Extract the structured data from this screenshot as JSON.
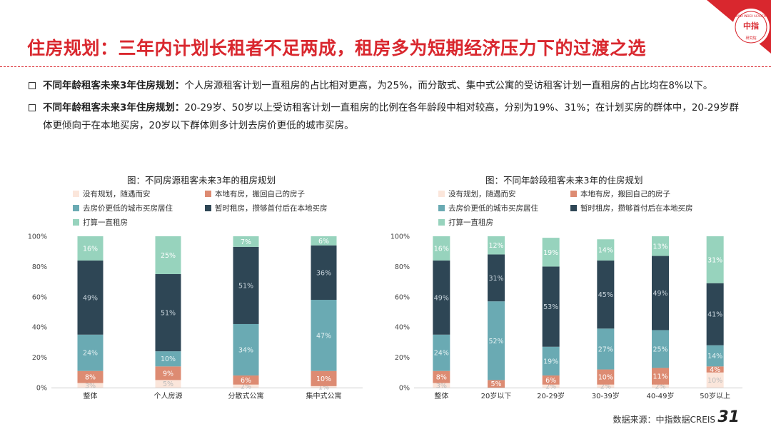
{
  "page": {
    "title": "住房规划：三年内计划长租者不足两成，租房多为短期经济压力下的过渡之选",
    "logo_text": "中指",
    "logo_ring_text": "CHINA INDEX ACADEMY",
    "logo_sub": "研究院",
    "source": "数据来源：中指数据CREIS",
    "page_number": "31"
  },
  "bullets": [
    {
      "lead": "不同年龄租客未来3年住房规划：",
      "text": "个人房源租客计划一直租房的占比相对更高，为25%，而分散式、集中式公寓的受访租客计划一直租房的占比均在8%以下。"
    },
    {
      "lead": "不同年龄租客未来3年住房规划：",
      "text": "20-29岁、50岁以上受访租客计划一直租房的比例在各年龄段中相对较高，分别为19%、31%；在计划买房的群体中，20-29岁群体更倾向于在本地买房，20岁以下群体则多计划去房价更低的城市买房。"
    }
  ],
  "colors": {
    "accent": "#d9272e",
    "s0": "#fbe6db",
    "s1": "#dd8b72",
    "s2": "#6aaab3",
    "s3": "#2e4655",
    "s4": "#97d3bd"
  },
  "chart_data": [
    {
      "type": "bar",
      "stacked": true,
      "title": "图：不同房源租客未来3年的租房规划",
      "categories": [
        "整体",
        "个人房源",
        "分散式公寓",
        "集中式公寓"
      ],
      "yticks": [
        "0%",
        "20%",
        "40%",
        "60%",
        "80%",
        "100%"
      ],
      "ylim": [
        0,
        100
      ],
      "series": [
        {
          "name": "没有规划，随遇而安",
          "values": [
            3,
            5,
            2,
            1
          ]
        },
        {
          "name": "本地有房，搬回自己的房子",
          "values": [
            8,
            9,
            6,
            10
          ]
        },
        {
          "name": "去房价更低的城市买房居住",
          "values": [
            24,
            10,
            34,
            47
          ]
        },
        {
          "name": "暂时租房，攒够首付后在本地买房",
          "values": [
            49,
            51,
            51,
            36
          ]
        },
        {
          "name": "打算一直租房",
          "values": [
            16,
            25,
            7,
            6
          ]
        }
      ],
      "labels": [
        [
          "3%",
          "5%",
          "2%",
          "1%"
        ],
        [
          "8%",
          "9%",
          "6%",
          "10%"
        ],
        [
          "24%",
          "10%",
          "34%",
          "47%"
        ],
        [
          "49%",
          "51%",
          "51%",
          "36%"
        ],
        [
          "16%",
          "25%",
          "7%",
          "6%"
        ]
      ]
    },
    {
      "type": "bar",
      "stacked": true,
      "title": "图：不同年龄段租客未来3年的住房规划",
      "categories": [
        "整体",
        "20岁以下",
        "20-29岁",
        "30-39岁",
        "40-49岁",
        "50岁以上"
      ],
      "yticks": [
        "0%",
        "20%",
        "40%",
        "60%",
        "80%",
        "100%"
      ],
      "ylim": [
        0,
        100
      ],
      "series": [
        {
          "name": "没有规划，随遇而安",
          "values": [
            3,
            0,
            2,
            2,
            2,
            10
          ]
        },
        {
          "name": "本地有房，搬回自己的房子",
          "values": [
            8,
            5,
            6,
            10,
            11,
            4
          ]
        },
        {
          "name": "去房价更低的城市买房居住",
          "values": [
            24,
            52,
            19,
            27,
            25,
            14
          ]
        },
        {
          "name": "暂时租房，攒够首付后在本地买房",
          "values": [
            49,
            31,
            53,
            45,
            49,
            41
          ]
        },
        {
          "name": "打算一直租房",
          "values": [
            16,
            12,
            19,
            14,
            13,
            31
          ]
        }
      ],
      "labels": [
        [
          "3%",
          "",
          "2%",
          "2%",
          "2%",
          "10%"
        ],
        [
          "8%",
          "5%",
          "6%",
          "10%",
          "11%",
          "4%"
        ],
        [
          "24%",
          "52%",
          "19%",
          "27%",
          "25%",
          "14%"
        ],
        [
          "49%",
          "31%",
          "53%",
          "45%",
          "49%",
          "41%"
        ],
        [
          "16%",
          "12%",
          "19%",
          "14%",
          "13%",
          "31%"
        ]
      ]
    }
  ]
}
